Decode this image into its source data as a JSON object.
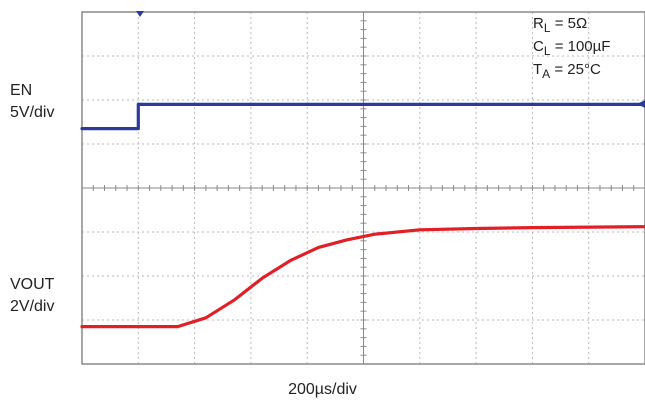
{
  "channels": {
    "en": {
      "name": "EN",
      "scale": "5V/div"
    },
    "vout": {
      "name": "VOUT",
      "scale": "2V/div"
    }
  },
  "conditions": {
    "rl": {
      "sym": "R",
      "sub": "L",
      "val": " = 5Ω"
    },
    "cl": {
      "sym": "C",
      "sub": "L",
      "val": " = 100µF"
    },
    "ta": {
      "sym": "T",
      "sub": "A",
      "val": " = 25°C"
    }
  },
  "x_scale": "200µs/div",
  "colors": {
    "en_trace": "#2b3a9c",
    "vout_trace": "#e01f26",
    "grid": "#b9b9b9",
    "frame": "#8a8a8a"
  },
  "chart_data": {
    "type": "line",
    "xlabel": "200µs/div",
    "x_unit": "div",
    "xlim": [
      0,
      10
    ],
    "ylim": [
      0,
      8
    ],
    "grid": true,
    "series": [
      {
        "name": "EN",
        "scale": "5V/div",
        "points": [
          [
            0,
            5.35
          ],
          [
            1.0,
            5.35
          ],
          [
            1.0,
            5.9
          ],
          [
            10,
            5.9
          ]
        ]
      },
      {
        "name": "VOUT",
        "scale": "2V/div",
        "points": [
          [
            0,
            0.85
          ],
          [
            1.7,
            0.85
          ],
          [
            2.2,
            1.05
          ],
          [
            2.7,
            1.45
          ],
          [
            3.2,
            1.95
          ],
          [
            3.7,
            2.35
          ],
          [
            4.2,
            2.65
          ],
          [
            4.7,
            2.82
          ],
          [
            5.2,
            2.95
          ],
          [
            6.0,
            3.05
          ],
          [
            7.0,
            3.08
          ],
          [
            8.0,
            3.1
          ],
          [
            10,
            3.12
          ]
        ]
      }
    ]
  }
}
